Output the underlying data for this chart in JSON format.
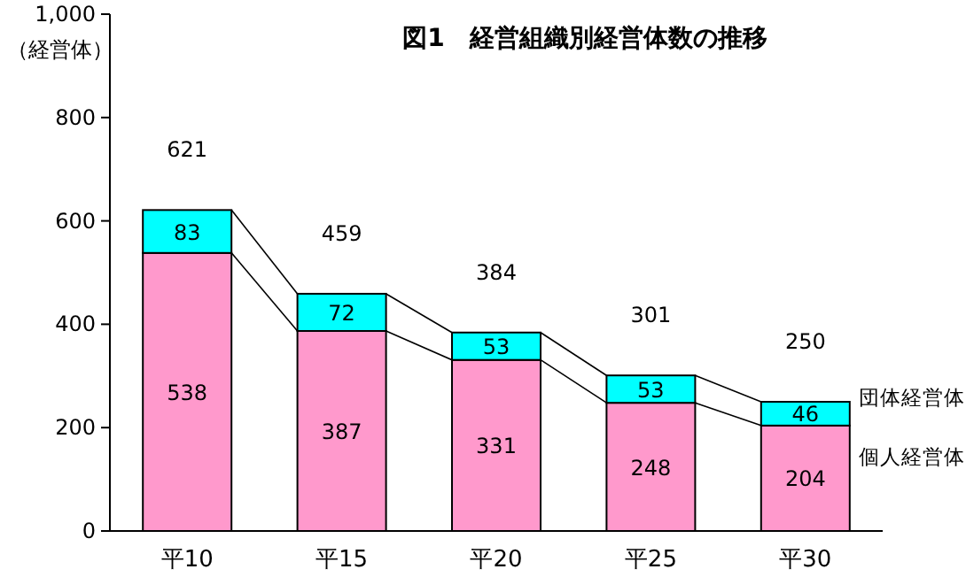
{
  "chart_data": {
    "type": "bar",
    "stacked": true,
    "title": "図1　経営組織別経営体数の推移",
    "ylabel": "（経営体）",
    "categories": [
      "平10",
      "平15",
      "平20",
      "平25",
      "平30"
    ],
    "series": [
      {
        "name": "個人経営体",
        "color": "#ff99cc",
        "values": [
          538,
          387,
          331,
          248,
          204
        ]
      },
      {
        "name": "団体経営体",
        "color": "#00ffff",
        "values": [
          83,
          72,
          53,
          53,
          46
        ]
      }
    ],
    "ylim": [
      0,
      1000
    ],
    "yticks": [
      0,
      200,
      400,
      600,
      800,
      {
        "value": 1000,
        "label": "1,000"
      }
    ],
    "data_labels": true,
    "totals": [
      "621",
      "459",
      "384",
      "301",
      "250"
    ],
    "legend": "right",
    "grid": false
  }
}
